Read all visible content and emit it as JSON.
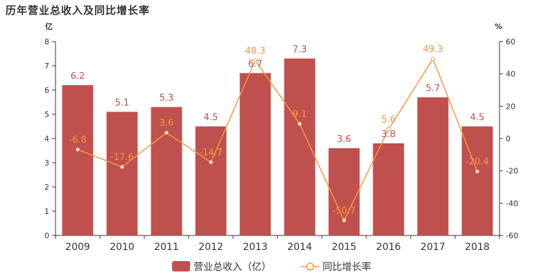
{
  "title": "历年营业总收入及同比增长率",
  "colors": {
    "bar": "#c0504d",
    "line": "#f79646",
    "axis": "#333333"
  },
  "chart_data": {
    "type": "bar",
    "categories": [
      "2009",
      "2010",
      "2011",
      "2012",
      "2013",
      "2014",
      "2015",
      "2016",
      "2017",
      "2018"
    ],
    "series": [
      {
        "name": "营业总收入（亿）",
        "type": "bar",
        "axis": "left",
        "values": [
          6.2,
          5.1,
          5.3,
          4.5,
          6.7,
          7.3,
          3.6,
          3.8,
          5.7,
          4.5
        ],
        "labels": [
          "6.2",
          "5.1",
          "5.3",
          "4.5",
          "6.7",
          "7.3",
          "3.6",
          "3.8",
          "5.7",
          "4.5"
        ]
      },
      {
        "name": "同比增长率",
        "type": "line",
        "axis": "right",
        "values": [
          -6.8,
          -17.6,
          3.6,
          -14.7,
          48.3,
          9.1,
          -50.7,
          5.6,
          49.3,
          -20.4
        ],
        "labels": [
          "-6.8",
          "-17.6",
          "3.6",
          "-14.7",
          "48.3",
          "9.1",
          "-50.7",
          "5.6",
          "49.3",
          "-20.4"
        ]
      }
    ],
    "y_left": {
      "unit": "亿",
      "ylim": [
        0,
        8
      ],
      "ticks": [
        "0",
        "1",
        "2",
        "3",
        "4",
        "5",
        "6",
        "7",
        "8"
      ]
    },
    "y_right": {
      "unit": "%",
      "ylim": [
        -60,
        60
      ],
      "ticks": [
        "-60",
        "-40",
        "-20",
        "0",
        "20",
        "40",
        "60"
      ]
    },
    "grid": false,
    "legend_position": "bottom"
  }
}
